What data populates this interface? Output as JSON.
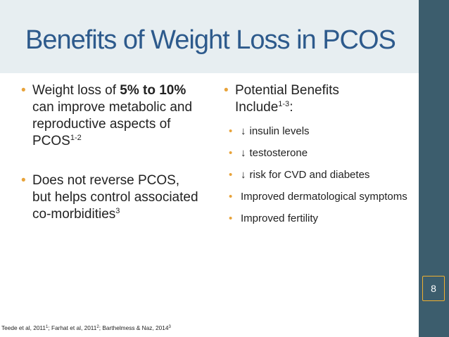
{
  "slide": {
    "title": "Benefits of Weight Loss in PCOS",
    "page_number": "8",
    "left_bullets": [
      {
        "pre": "Weight loss of ",
        "bold": "5% to 10%",
        "post": " can improve metabolic and reproductive aspects of PCOS",
        "sup": "1-2"
      },
      {
        "text": "Does not reverse PCOS, but helps control associated co-morbidities",
        "sup": "3"
      }
    ],
    "right_bullet": {
      "text": "Potential Benefits Include",
      "sup": "1-3",
      "suffix": ":"
    },
    "sub_bullets": [
      {
        "arrow": "↓",
        "text": "insulin levels"
      },
      {
        "arrow": "↓",
        "text": "testosterone"
      },
      {
        "arrow": "↓",
        "text": "risk for CVD and diabetes"
      },
      {
        "arrow": "",
        "text": "Improved dermatological symptoms"
      },
      {
        "arrow": "",
        "text": "Improved fertility"
      }
    ],
    "citation": {
      "a": "Teede et al, 2011",
      "a_sup": "1",
      "b": "; Farhat et al, 2011",
      "b_sup": "2",
      "c": "; Barthelmess & Naz, 2014",
      "c_sup": "3"
    },
    "bullet_glyph": "•",
    "colors": {
      "title": "#2d5a8c",
      "title_band": "#e7eef1",
      "side_bar": "#3c5d6d",
      "bullet": "#e8a33a",
      "page_box_border": "#f0b030"
    }
  }
}
